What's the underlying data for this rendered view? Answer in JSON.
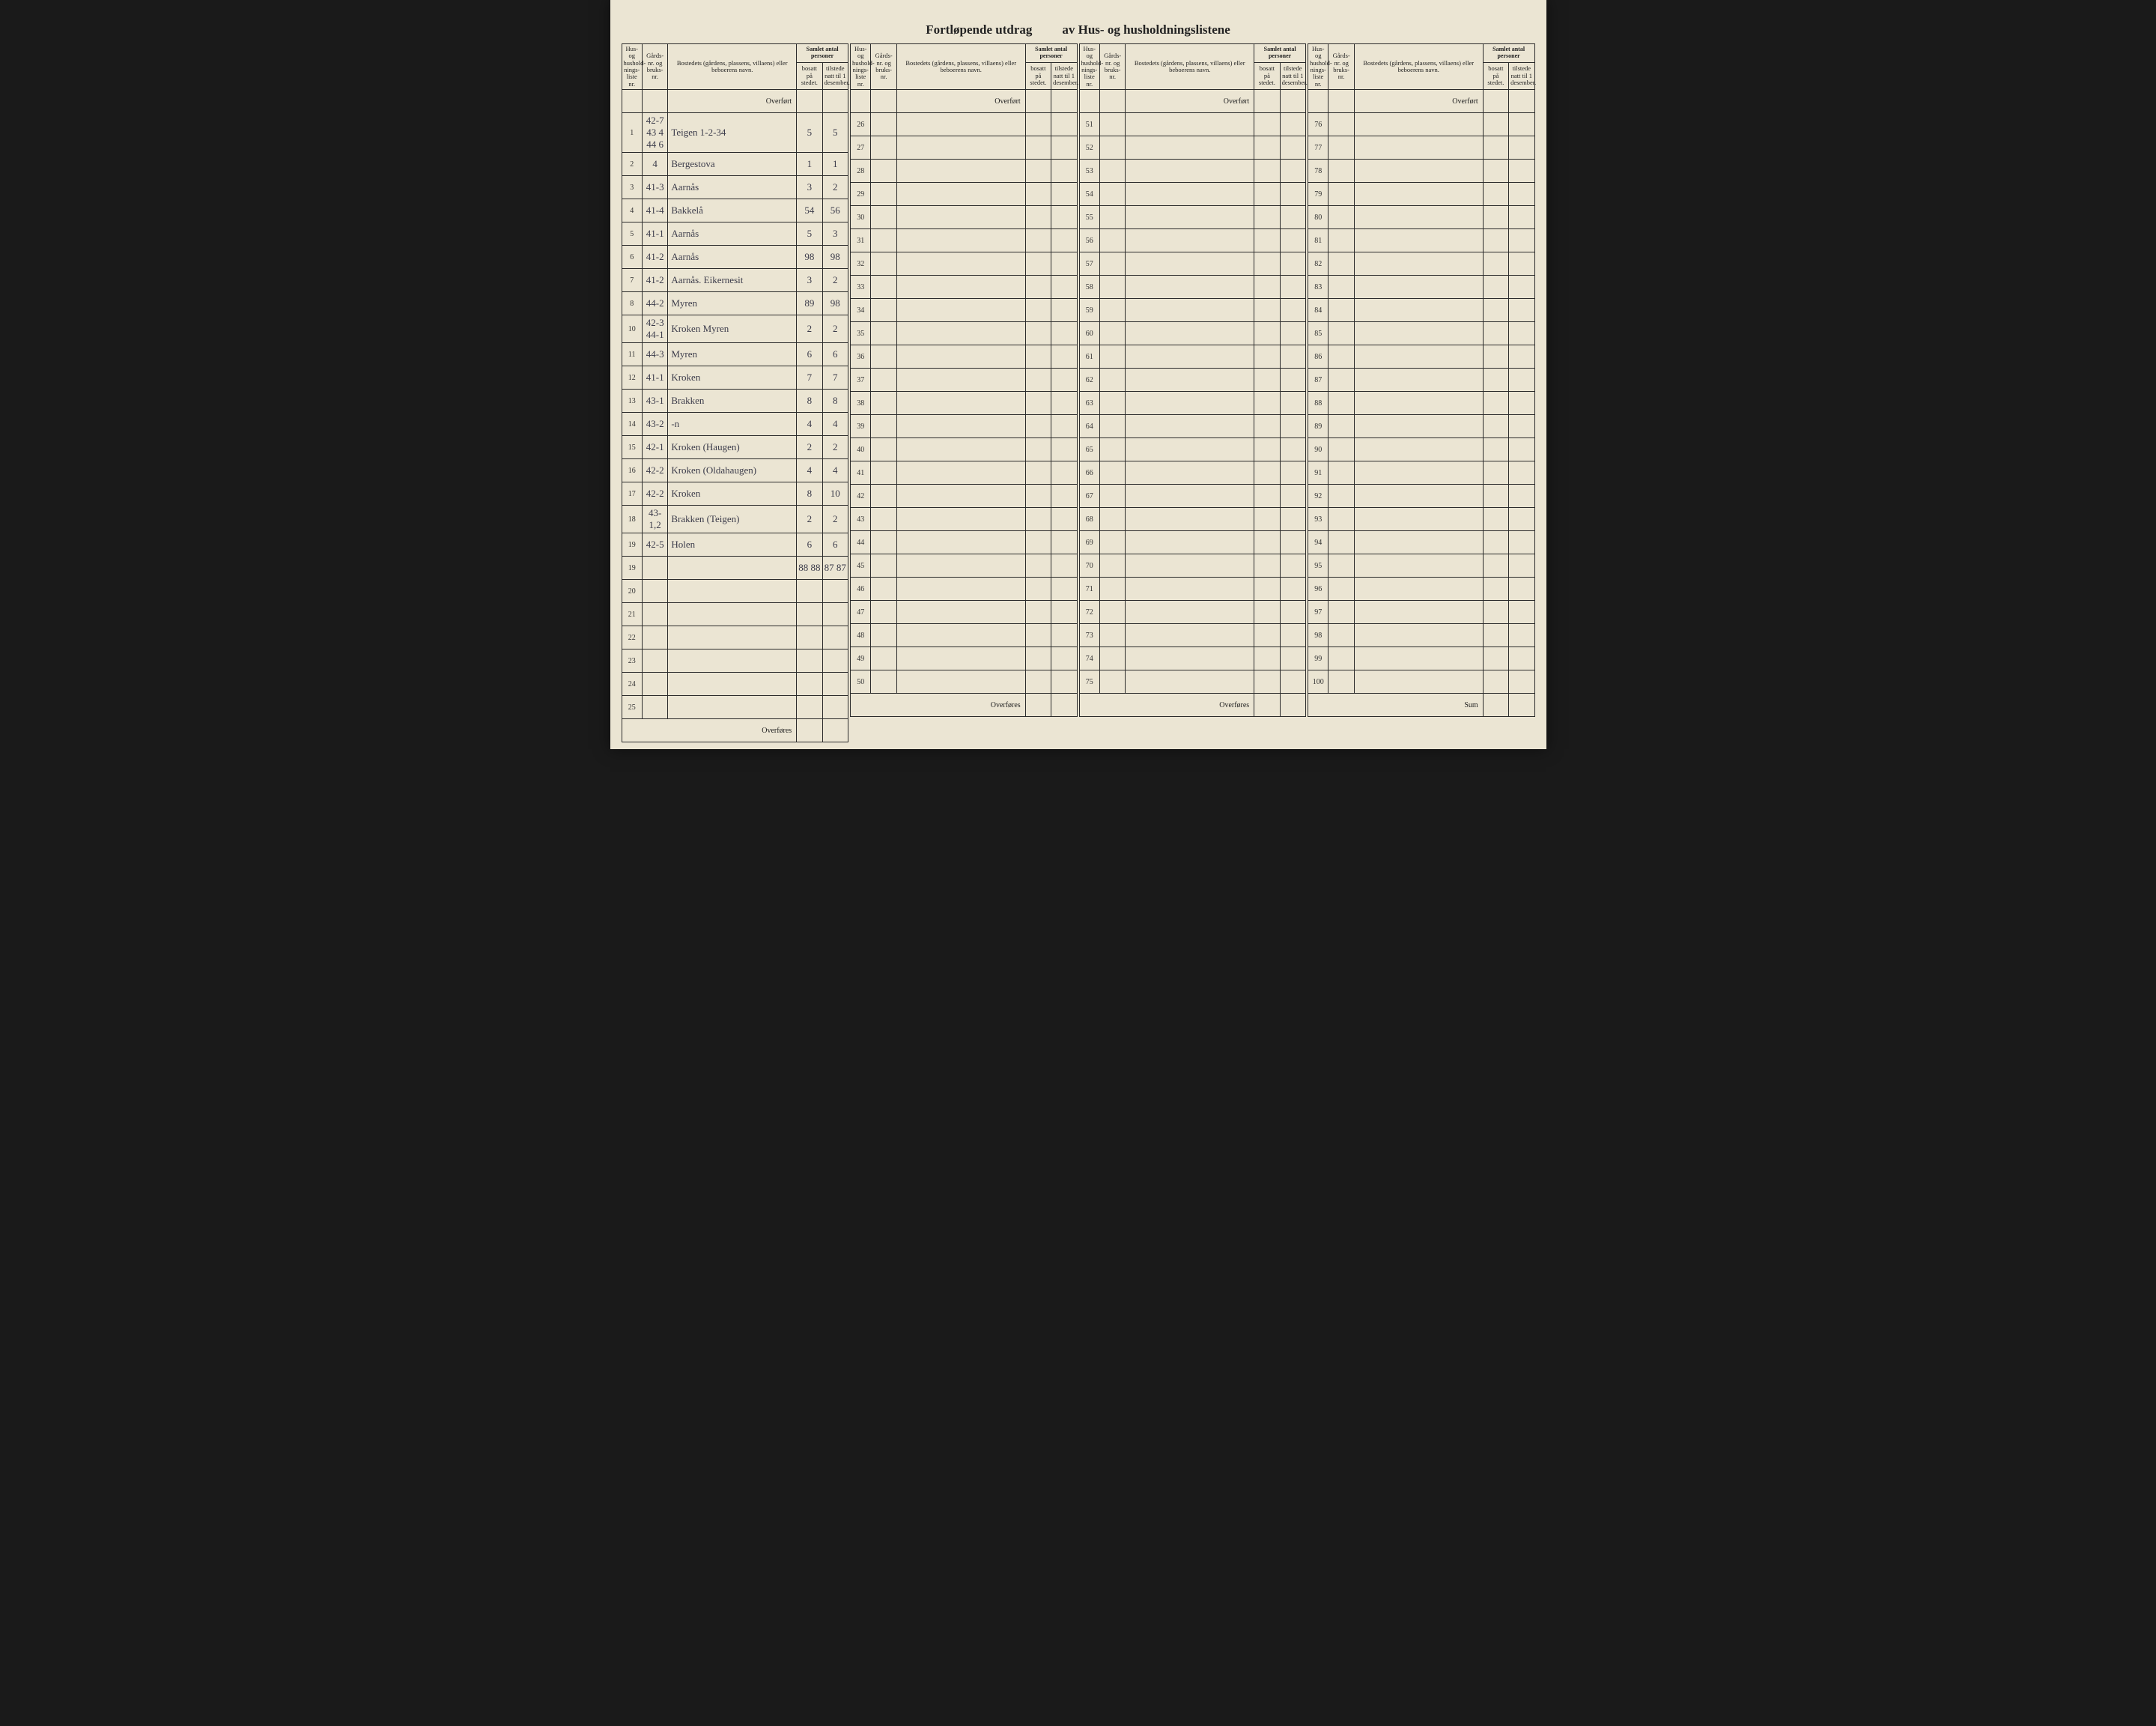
{
  "title_left": "Fortløpende utdrag",
  "title_right": "av Hus- og husholdningslistene",
  "headers": {
    "liste": "Hus- og hushold-nings-liste nr.",
    "gard": "Gårds-nr. og bruks-nr.",
    "navn": "Bostedets (gårdens, plassens, villaens) eller beboerens navn.",
    "group": "Samlet antal personer",
    "bosatt": "bosatt på stedet.",
    "tilstede": "tilstede natt til 1 desember."
  },
  "overfort": "Overført",
  "overfores": "Overføres",
  "sum": "Sum",
  "rows1": [
    {
      "n": "1",
      "g": "42-7 43 4 44 6",
      "navn": "Teigen 1-2-34",
      "b": "5",
      "t": "5"
    },
    {
      "n": "2",
      "g": "4",
      "navn": "Bergestova",
      "b": "1",
      "t": "1"
    },
    {
      "n": "3",
      "g": "41-3",
      "navn": "Aarnås",
      "b": "3",
      "t": "2"
    },
    {
      "n": "4",
      "g": "41-4",
      "navn": "Bakkelå",
      "b": "54",
      "t": "56"
    },
    {
      "n": "5",
      "g": "41-1",
      "navn": "Aarnås",
      "b": "5",
      "t": "3"
    },
    {
      "n": "6",
      "g": "41-2",
      "navn": "Aarnås",
      "b": "98",
      "t": "98"
    },
    {
      "n": "7",
      "g": "41-2",
      "navn": "Aarnås. Eikernesit",
      "b": "3",
      "t": "2"
    },
    {
      "n": "8",
      "g": "44-2",
      "navn": "Myren",
      "b": "89",
      "t": "98"
    },
    {
      "n": "10",
      "g": "42-3 44-1",
      "navn": "Kroken Myren",
      "b": "2",
      "t": "2"
    },
    {
      "n": "11",
      "g": "44-3",
      "navn": "Myren",
      "b": "6",
      "t": "6"
    },
    {
      "n": "12",
      "g": "41-1",
      "navn": "Kroken",
      "b": "7",
      "t": "7"
    },
    {
      "n": "13",
      "g": "43-1",
      "navn": "Brakken",
      "b": "8",
      "t": "8"
    },
    {
      "n": "14",
      "g": "43-2",
      "navn": "-n",
      "b": "4",
      "t": "4"
    },
    {
      "n": "15",
      "g": "42-1",
      "navn": "Kroken (Haugen)",
      "b": "2",
      "t": "2"
    },
    {
      "n": "16",
      "g": "42-2",
      "navn": "Kroken (Oldahaugen)",
      "b": "4",
      "t": "4"
    },
    {
      "n": "17",
      "g": "42-2",
      "navn": "Kroken",
      "b": "8",
      "t": "10"
    },
    {
      "n": "18",
      "g": "43-1,2",
      "navn": "Brakken (Teigen)",
      "b": "2",
      "t": "2"
    },
    {
      "n": "19",
      "g": "42-5",
      "navn": "Holen",
      "b": "6",
      "t": "6"
    },
    {
      "n": "19",
      "g": "",
      "navn": "",
      "b": "88 88",
      "t": "87 87"
    },
    {
      "n": "20",
      "g": "",
      "navn": "",
      "b": "",
      "t": ""
    },
    {
      "n": "21",
      "g": "",
      "navn": "",
      "b": "",
      "t": ""
    },
    {
      "n": "22",
      "g": "",
      "navn": "",
      "b": "",
      "t": ""
    },
    {
      "n": "23",
      "g": "",
      "navn": "",
      "b": "",
      "t": ""
    },
    {
      "n": "24",
      "g": "",
      "navn": "",
      "b": "",
      "t": ""
    },
    {
      "n": "25",
      "g": "",
      "navn": "",
      "b": "",
      "t": ""
    }
  ],
  "rows2_start": 26,
  "rows3_start": 51,
  "rows4_start": 76
}
